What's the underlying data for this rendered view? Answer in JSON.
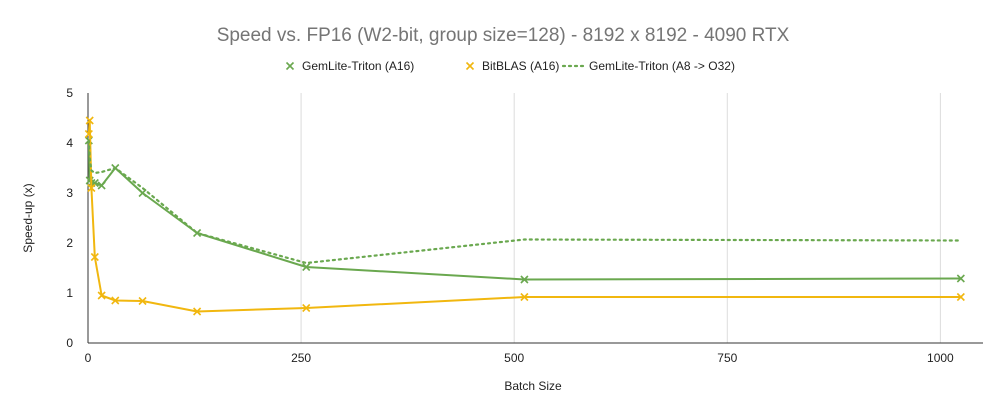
{
  "chart_data": {
    "type": "line",
    "title": "Speed vs. FP16 (W2-bit, group size=128) - 8192 x 8192 - 4090 RTX",
    "xlabel": "Batch Size",
    "ylabel": "Speed-up (x)",
    "xlim": [
      0,
      1050
    ],
    "ylim": [
      0,
      5
    ],
    "xticks": [
      0,
      250,
      500,
      750,
      1000
    ],
    "yticks": [
      0,
      1,
      2,
      3,
      4,
      5
    ],
    "grid": "vertical",
    "legend_position": "top",
    "series": [
      {
        "name": "GemLite-Triton (A16)",
        "color": "#6aa84f",
        "style": "solid",
        "marker": "x",
        "x": [
          1,
          2,
          4,
          8,
          16,
          32,
          64,
          128,
          256,
          512,
          1024
        ],
        "y": [
          4.05,
          3.25,
          3.2,
          3.2,
          3.15,
          3.5,
          3.0,
          2.2,
          1.52,
          1.27,
          1.29
        ]
      },
      {
        "name": "BitBLAS (A16)",
        "color": "#f1b70f",
        "style": "solid",
        "marker": "x",
        "x": [
          1,
          2,
          4,
          8,
          16,
          32,
          64,
          128,
          256,
          512,
          1024
        ],
        "y": [
          4.18,
          4.45,
          3.1,
          1.72,
          0.95,
          0.85,
          0.84,
          0.63,
          0.7,
          0.92,
          0.92
        ]
      },
      {
        "name": "GemLite-Triton (A8 -> O32)",
        "color": "#6aa84f",
        "style": "dotted",
        "marker": "none",
        "x": [
          1,
          2,
          4,
          8,
          16,
          32,
          64,
          128,
          256,
          512,
          1024
        ],
        "y": [
          4.05,
          3.7,
          3.45,
          3.4,
          3.42,
          3.5,
          3.1,
          2.2,
          1.6,
          2.07,
          2.05
        ]
      }
    ]
  }
}
